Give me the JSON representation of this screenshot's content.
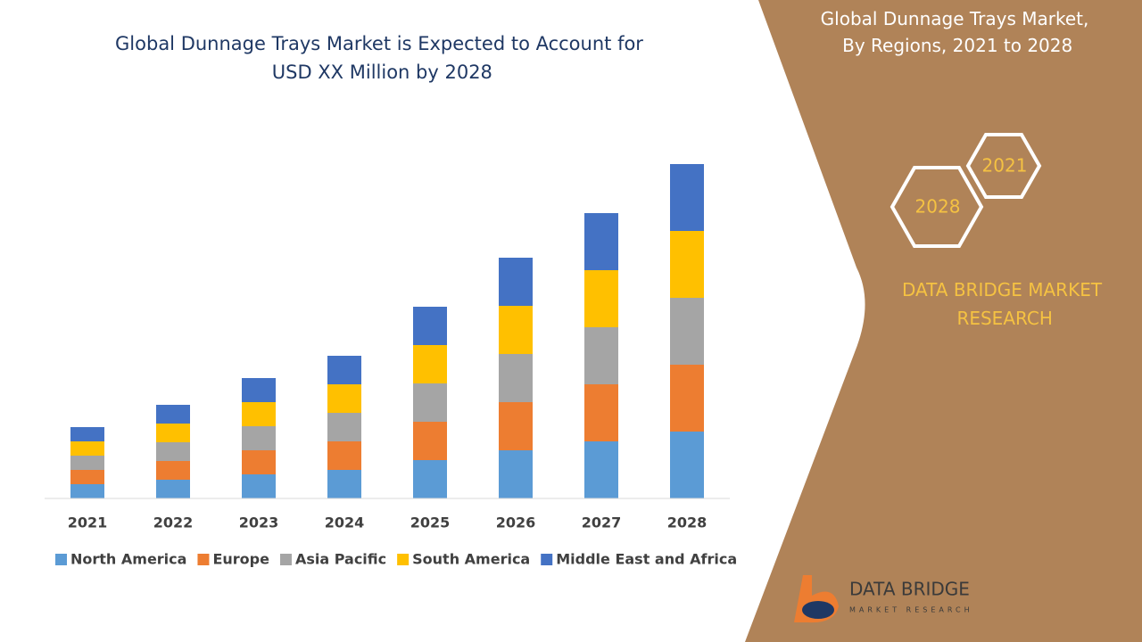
{
  "chart_data": {
    "type": "stacked_bar",
    "title": "Global Dunnage Trays Market is Expected to Account for USD XX Million by 2028",
    "categories": [
      "2021",
      "2022",
      "2023",
      "2024",
      "2025",
      "2026",
      "2027",
      "2028"
    ],
    "series": [
      {
        "name": "North America",
        "color": "#5b9bd5",
        "values": [
          16,
          21,
          27,
          32,
          43,
          54,
          64,
          75
        ]
      },
      {
        "name": "Europe",
        "color": "#ed7d31",
        "values": [
          16,
          21,
          27,
          32,
          43,
          54,
          64,
          75
        ]
      },
      {
        "name": "Asia Pacific",
        "color": "#a5a5a5",
        "values": [
          16,
          21,
          27,
          32,
          43,
          54,
          64,
          75
        ]
      },
      {
        "name": "South America",
        "color": "#ffc000",
        "values": [
          16,
          21,
          27,
          32,
          43,
          54,
          64,
          75
        ]
      },
      {
        "name": "Middle East and Africa",
        "color": "#4472c4",
        "values": [
          16,
          21,
          27,
          32,
          43,
          54,
          64,
          75
        ]
      }
    ],
    "ylim": [
      0,
      400
    ],
    "legend": "bottom"
  },
  "panel": {
    "title": "Global Dunnage Trays Market, By Regions, 2021 to 2028",
    "hex_start": "2021",
    "hex_end": "2028",
    "brand": "DATA BRIDGE MARKET RESEARCH",
    "logo_name": "DATA BRIDGE",
    "logo_tagline": "MARKET RESEARCH"
  }
}
